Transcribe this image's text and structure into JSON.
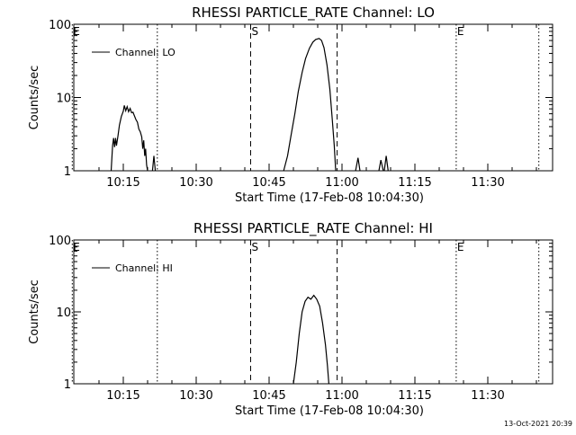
{
  "chart_data": [
    {
      "type": "line",
      "title": "RHESSI PARTICLE_RATE Channel: LO",
      "xlabel": "Start Time (17-Feb-08 10:04:30)",
      "ylabel": "Counts/sec",
      "ylog": true,
      "ylim": [
        1,
        100
      ],
      "xlim_minutes": [
        4.5,
        43.6
      ],
      "x_ticks": [
        {
          "minute": 15,
          "label": "10:15"
        },
        {
          "minute": 30,
          "label": "10:30"
        },
        {
          "minute": 45,
          "label": "10:45"
        },
        {
          "minute": 60,
          "label": "11:00"
        },
        {
          "minute": 75,
          "label": "11:15"
        },
        {
          "minute": 90,
          "label": "11:30"
        }
      ],
      "y_ticks": [
        {
          "value": 1,
          "label": "1"
        },
        {
          "value": 10,
          "label": "10"
        },
        {
          "value": 100,
          "label": "100"
        }
      ],
      "legend": {
        "label": "Channel: LO",
        "position": "top-left"
      },
      "flags": [
        {
          "minute": 4.5,
          "label": "E",
          "style": "dotted"
        },
        {
          "minute": 22.0,
          "label": "",
          "style": "dotted"
        },
        {
          "minute": 41.2,
          "label": "S",
          "style": "dashed"
        },
        {
          "minute": 59.0,
          "label": "",
          "style": "dashed"
        },
        {
          "minute": 83.5,
          "label": "E",
          "style": "dotted"
        },
        {
          "minute": 100.5,
          "label": "",
          "style": "dotted"
        }
      ],
      "series": [
        {
          "name": "Channel: LO",
          "segments": [
            [
              [
                12.5,
                1
              ],
              [
                12.8,
                2.2
              ],
              [
                13.0,
                2.8
              ],
              [
                13.2,
                2.1
              ],
              [
                13.4,
                2.8
              ],
              [
                13.6,
                2.2
              ],
              [
                13.9,
                3.0
              ],
              [
                14.2,
                4.2
              ],
              [
                14.6,
                5.5
              ],
              [
                15.0,
                6.5
              ],
              [
                15.2,
                7.8
              ],
              [
                15.5,
                6.6
              ],
              [
                15.8,
                7.5
              ],
              [
                16.1,
                6.4
              ],
              [
                16.4,
                7.1
              ],
              [
                16.7,
                6.2
              ],
              [
                17.0,
                6.3
              ],
              [
                17.3,
                5.6
              ],
              [
                17.6,
                5.0
              ],
              [
                17.9,
                4.6
              ],
              [
                18.2,
                3.7
              ],
              [
                18.5,
                3.4
              ],
              [
                18.8,
                2.9
              ],
              [
                19.0,
                2.0
              ],
              [
                19.2,
                2.6
              ],
              [
                19.4,
                1.6
              ],
              [
                19.6,
                2.0
              ],
              [
                19.8,
                1.2
              ],
              [
                20.0,
                1
              ]
            ],
            [
              [
                21.0,
                1
              ],
              [
                21.3,
                1.6
              ],
              [
                21.6,
                1
              ]
            ],
            [
              [
                48.0,
                1
              ],
              [
                48.8,
                1.6
              ],
              [
                49.5,
                3.0
              ],
              [
                50.3,
                6.0
              ],
              [
                51.0,
                12
              ],
              [
                51.8,
                22
              ],
              [
                52.5,
                34
              ],
              [
                53.3,
                47
              ],
              [
                54.0,
                57
              ],
              [
                54.6,
                62
              ],
              [
                55.3,
                64
              ],
              [
                55.8,
                60
              ],
              [
                56.3,
                48
              ],
              [
                56.9,
                28
              ],
              [
                57.5,
                13
              ],
              [
                58.0,
                5
              ],
              [
                58.4,
                2.2
              ],
              [
                58.7,
                1
              ]
            ],
            [
              [
                62.8,
                1
              ],
              [
                63.3,
                1.5
              ],
              [
                63.7,
                1
              ]
            ],
            [
              [
                67.6,
                1
              ],
              [
                68.0,
                1.4
              ],
              [
                68.5,
                1
              ]
            ],
            [
              [
                68.7,
                1
              ],
              [
                69.1,
                1.6
              ],
              [
                69.5,
                1
              ]
            ]
          ]
        }
      ]
    },
    {
      "type": "line",
      "title": "RHESSI PARTICLE_RATE Channel: HI",
      "xlabel": "Start Time (17-Feb-08 10:04:30)",
      "ylabel": "Counts/sec",
      "ylog": true,
      "ylim": [
        1,
        100
      ],
      "xlim_minutes": [
        4.5,
        43.6
      ],
      "x_ticks": [
        {
          "minute": 15,
          "label": "10:15"
        },
        {
          "minute": 30,
          "label": "10:30"
        },
        {
          "minute": 45,
          "label": "10:45"
        },
        {
          "minute": 60,
          "label": "11:00"
        },
        {
          "minute": 75,
          "label": "11:15"
        },
        {
          "minute": 90,
          "label": "11:30"
        }
      ],
      "y_ticks": [
        {
          "value": 1,
          "label": "1"
        },
        {
          "value": 10,
          "label": "10"
        },
        {
          "value": 100,
          "label": "100"
        }
      ],
      "legend": {
        "label": "Channel: HI",
        "position": "top-left"
      },
      "flags": [
        {
          "minute": 4.5,
          "label": "E",
          "style": "dotted"
        },
        {
          "minute": 22.0,
          "label": "",
          "style": "dotted"
        },
        {
          "minute": 41.2,
          "label": "S",
          "style": "dashed"
        },
        {
          "minute": 59.0,
          "label": "",
          "style": "dashed"
        },
        {
          "minute": 83.5,
          "label": "E",
          "style": "dotted"
        },
        {
          "minute": 100.5,
          "label": "",
          "style": "dotted"
        }
      ],
      "series": [
        {
          "name": "Channel: HI",
          "segments": [
            [
              [
                50.0,
                1
              ],
              [
                50.6,
                2.0
              ],
              [
                51.2,
                5.0
              ],
              [
                51.8,
                10
              ],
              [
                52.4,
                14
              ],
              [
                53.0,
                16
              ],
              [
                53.6,
                15
              ],
              [
                54.2,
                17
              ],
              [
                54.8,
                15
              ],
              [
                55.4,
                12
              ],
              [
                56.0,
                7
              ],
              [
                56.6,
                3.5
              ],
              [
                57.0,
                1.8
              ],
              [
                57.3,
                1
              ]
            ]
          ]
        }
      ]
    }
  ],
  "timestamp": "13-Oct-2021 20:39"
}
